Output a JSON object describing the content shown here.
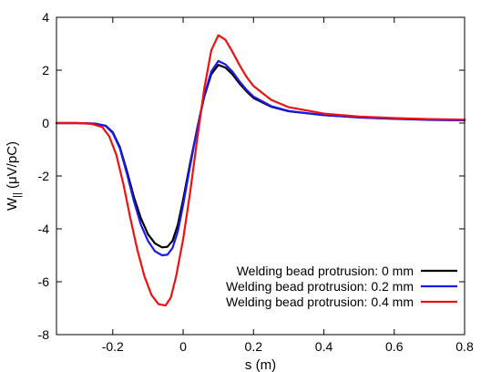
{
  "chart_data": {
    "type": "line",
    "xlabel": "s (m)",
    "ylabel": "W",
    "ylabel_subscript": "||",
    "ylabel_unit": " (μV/pC)",
    "xlim": [
      -0.36,
      0.8
    ],
    "ylim": [
      -8,
      4
    ],
    "x_ticks": [
      -0.2,
      0,
      0.2,
      0.4,
      0.6,
      0.8
    ],
    "x_tick_labels": [
      "-0.2",
      "0",
      "0.2",
      "0.4",
      "0.6",
      "0.8"
    ],
    "y_ticks": [
      -8,
      -6,
      -4,
      -2,
      0,
      2,
      4
    ],
    "y_tick_labels": [
      "-8",
      "-6",
      "-4",
      "-2",
      "0",
      "2",
      "4"
    ],
    "grid": false,
    "legend_position": "bottom-right",
    "series": [
      {
        "name": "Welding bead protrusion: 0 mm",
        "color": "#000000",
        "points": [
          [
            -0.36,
            0
          ],
          [
            -0.3,
            0
          ],
          [
            -0.25,
            -0.02
          ],
          [
            -0.22,
            -0.1
          ],
          [
            -0.2,
            -0.35
          ],
          [
            -0.18,
            -0.9
          ],
          [
            -0.16,
            -1.8
          ],
          [
            -0.14,
            -2.8
          ],
          [
            -0.12,
            -3.6
          ],
          [
            -0.1,
            -4.2
          ],
          [
            -0.08,
            -4.55
          ],
          [
            -0.06,
            -4.7
          ],
          [
            -0.045,
            -4.68
          ],
          [
            -0.03,
            -4.45
          ],
          [
            -0.015,
            -3.85
          ],
          [
            0,
            -2.9
          ],
          [
            0.02,
            -1.5
          ],
          [
            0.04,
            -0.2
          ],
          [
            0.06,
            1.0
          ],
          [
            0.08,
            1.85
          ],
          [
            0.1,
            2.2
          ],
          [
            0.12,
            2.1
          ],
          [
            0.14,
            1.85
          ],
          [
            0.16,
            1.5
          ],
          [
            0.18,
            1.2
          ],
          [
            0.2,
            0.95
          ],
          [
            0.25,
            0.62
          ],
          [
            0.3,
            0.45
          ],
          [
            0.4,
            0.3
          ],
          [
            0.5,
            0.22
          ],
          [
            0.6,
            0.17
          ],
          [
            0.7,
            0.13
          ],
          [
            0.8,
            0.11
          ]
        ]
      },
      {
        "name": "Welding bead protrusion: 0.2 mm",
        "color": "#1a1aee",
        "points": [
          [
            -0.36,
            0
          ],
          [
            -0.3,
            0
          ],
          [
            -0.25,
            -0.02
          ],
          [
            -0.22,
            -0.11
          ],
          [
            -0.2,
            -0.38
          ],
          [
            -0.18,
            -0.95
          ],
          [
            -0.16,
            -1.9
          ],
          [
            -0.14,
            -2.95
          ],
          [
            -0.12,
            -3.85
          ],
          [
            -0.1,
            -4.45
          ],
          [
            -0.08,
            -4.85
          ],
          [
            -0.06,
            -5.0
          ],
          [
            -0.045,
            -4.98
          ],
          [
            -0.03,
            -4.72
          ],
          [
            -0.015,
            -4.1
          ],
          [
            0,
            -3.1
          ],
          [
            0.02,
            -1.6
          ],
          [
            0.04,
            -0.2
          ],
          [
            0.06,
            1.05
          ],
          [
            0.08,
            1.95
          ],
          [
            0.1,
            2.35
          ],
          [
            0.12,
            2.22
          ],
          [
            0.14,
            1.95
          ],
          [
            0.16,
            1.58
          ],
          [
            0.18,
            1.26
          ],
          [
            0.2,
            1.0
          ],
          [
            0.25,
            0.64
          ],
          [
            0.3,
            0.46
          ],
          [
            0.4,
            0.3
          ],
          [
            0.5,
            0.21
          ],
          [
            0.6,
            0.16
          ],
          [
            0.7,
            0.12
          ],
          [
            0.8,
            0.1
          ]
        ]
      },
      {
        "name": "Welding bead protrusion: 0.4 mm",
        "color": "#ee1111",
        "points": [
          [
            -0.36,
            0
          ],
          [
            -0.3,
            0
          ],
          [
            -0.26,
            -0.03
          ],
          [
            -0.23,
            -0.15
          ],
          [
            -0.21,
            -0.5
          ],
          [
            -0.19,
            -1.2
          ],
          [
            -0.17,
            -2.3
          ],
          [
            -0.15,
            -3.6
          ],
          [
            -0.13,
            -4.8
          ],
          [
            -0.11,
            -5.8
          ],
          [
            -0.09,
            -6.5
          ],
          [
            -0.07,
            -6.85
          ],
          [
            -0.05,
            -6.9
          ],
          [
            -0.035,
            -6.6
          ],
          [
            -0.02,
            -5.8
          ],
          [
            0,
            -4.4
          ],
          [
            0.02,
            -2.6
          ],
          [
            0.04,
            -0.6
          ],
          [
            0.06,
            1.3
          ],
          [
            0.08,
            2.75
          ],
          [
            0.1,
            3.32
          ],
          [
            0.12,
            3.15
          ],
          [
            0.14,
            2.7
          ],
          [
            0.16,
            2.2
          ],
          [
            0.18,
            1.75
          ],
          [
            0.2,
            1.4
          ],
          [
            0.25,
            0.88
          ],
          [
            0.3,
            0.6
          ],
          [
            0.4,
            0.36
          ],
          [
            0.5,
            0.25
          ],
          [
            0.6,
            0.19
          ],
          [
            0.7,
            0.15
          ],
          [
            0.8,
            0.13
          ]
        ]
      }
    ]
  }
}
